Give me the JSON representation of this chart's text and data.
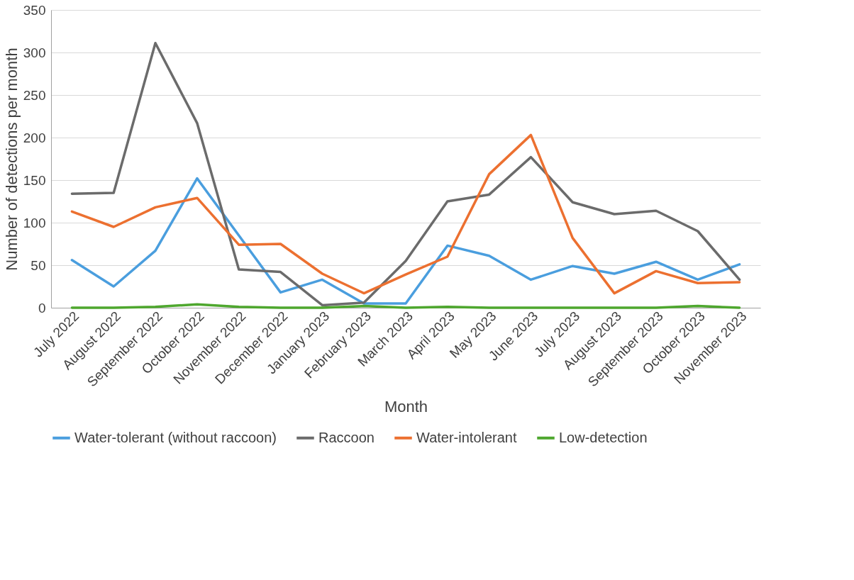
{
  "chart_data": {
    "type": "line",
    "xlabel": "Month",
    "ylabel": "Number of detections per month",
    "categories": [
      "July 2022",
      "August 2022",
      "September 2022",
      "October 2022",
      "November 2022",
      "December 2022",
      "January 2023",
      "February 2023",
      "March 2023",
      "April 2023",
      "May 2023",
      "June 2023",
      "July 2023",
      "August 2023",
      "September 2023",
      "October 2023",
      "November 2023"
    ],
    "series": [
      {
        "name": "Water-tolerant (without raccoon)",
        "color": "#4a9ede",
        "values": [
          56,
          25,
          67,
          152,
          85,
          18,
          33,
          5,
          5,
          73,
          61,
          33,
          49,
          40,
          54,
          33,
          51
        ]
      },
      {
        "name": "Raccoon",
        "color": "#6b6b6b",
        "values": [
          134,
          135,
          311,
          217,
          45,
          42,
          3,
          6,
          55,
          125,
          133,
          177,
          124,
          110,
          114,
          90,
          33
        ]
      },
      {
        "name": "Water-intolerant",
        "color": "#ec7030",
        "values": [
          113,
          95,
          118,
          129,
          74,
          75,
          40,
          17,
          39,
          60,
          157,
          203,
          82,
          17,
          43,
          29,
          30
        ]
      },
      {
        "name": "Low-detection",
        "color": "#4ea72e",
        "values": [
          0,
          0,
          1,
          4,
          1,
          0,
          0,
          2,
          0,
          1,
          0,
          0,
          0,
          0,
          0,
          2,
          0
        ]
      }
    ],
    "ylim": [
      0,
      350
    ],
    "yticks": [
      0,
      50,
      100,
      150,
      200,
      250,
      300,
      350
    ],
    "grid": "y",
    "legend": "bottom",
    "marker": "none",
    "line_style": "solid"
  }
}
